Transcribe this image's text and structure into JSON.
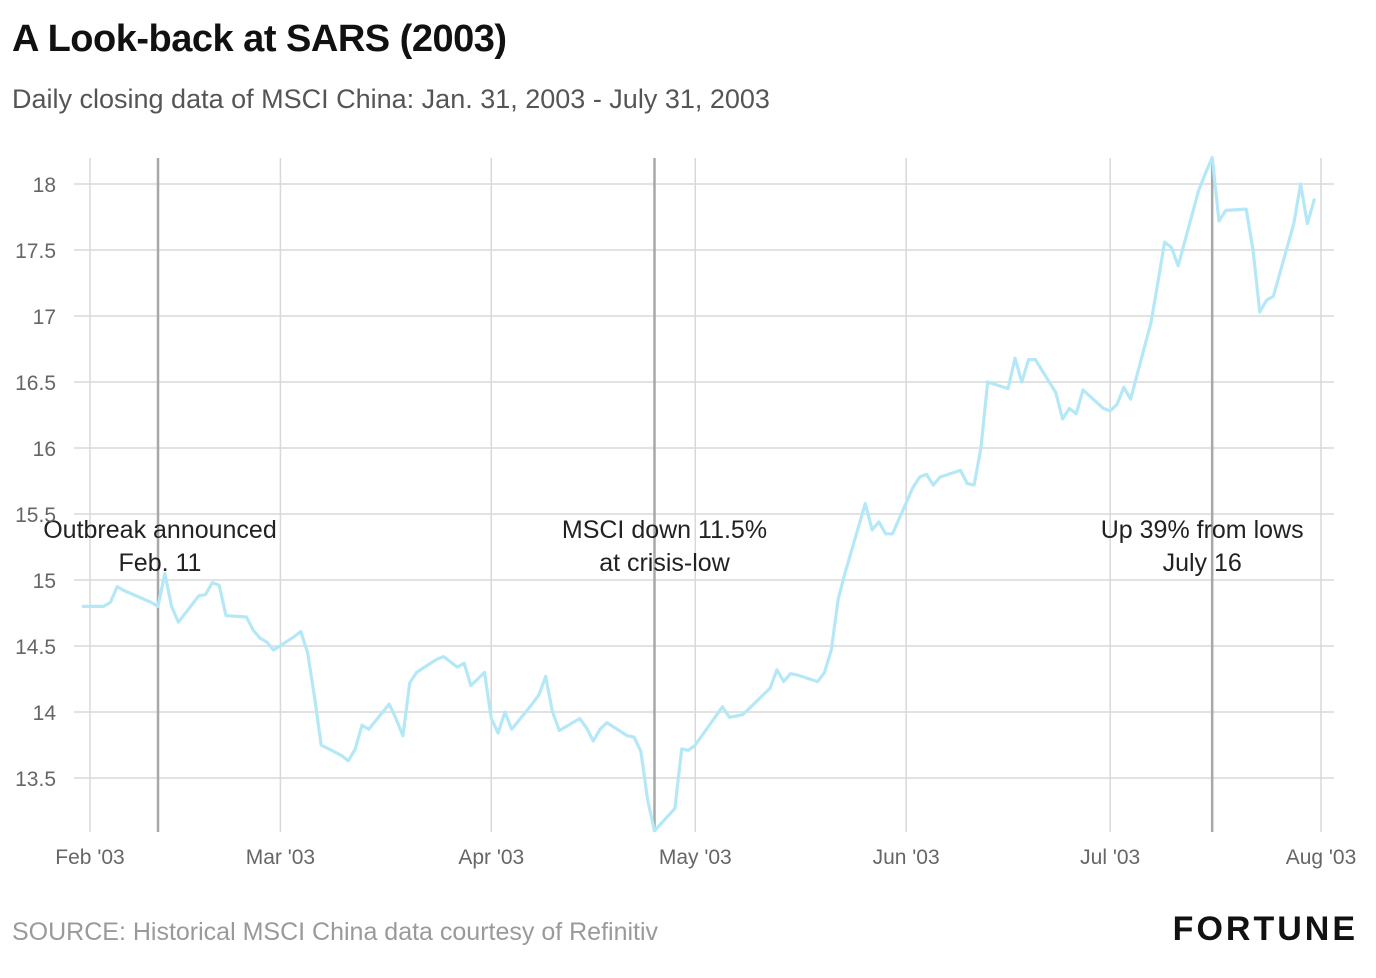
{
  "title": "A Look-back at SARS (2003)",
  "subtitle": "Daily closing data of MSCI China: Jan. 31, 2003 - July 31, 2003",
  "source": "SOURCE: Historical MSCI China data courtesy of Refinitiv",
  "brand": "FORTUNE",
  "colors": {
    "line": "#b5e8f7",
    "grid": "#d8d8d8",
    "marker": "#a8a8a8"
  },
  "chart_data": {
    "type": "line",
    "xlabel": "",
    "ylabel": "",
    "xlim": [
      "2003-01-31",
      "2003-07-31"
    ],
    "ylim": [
      13.1,
      18.2
    ],
    "grid": true,
    "x_ticks": [
      {
        "date": "2003-02-01",
        "label": "Feb '03"
      },
      {
        "date": "2003-03-01",
        "label": "Mar '03"
      },
      {
        "date": "2003-04-01",
        "label": "Apr '03"
      },
      {
        "date": "2003-05-01",
        "label": "May '03"
      },
      {
        "date": "2003-06-01",
        "label": "Jun '03"
      },
      {
        "date": "2003-07-01",
        "label": "Jul '03"
      },
      {
        "date": "2003-08-01",
        "label": "Aug '03"
      }
    ],
    "y_ticks": [
      {
        "value": 13.5,
        "label": "13.5"
      },
      {
        "value": 14,
        "label": "14"
      },
      {
        "value": 14.5,
        "label": "14.5"
      },
      {
        "value": 15,
        "label": "15"
      },
      {
        "value": 15.5,
        "label": "15.5"
      },
      {
        "value": 16,
        "label": "16"
      },
      {
        "value": 16.5,
        "label": "16.5"
      },
      {
        "value": 17,
        "label": "17"
      },
      {
        "value": 17.5,
        "label": "17.5"
      },
      {
        "value": 18,
        "label": "18"
      }
    ],
    "series": [
      {
        "name": "",
        "points": [
          [
            "2003-01-31",
            14.8
          ],
          [
            "2003-02-03",
            14.8
          ],
          [
            "2003-02-04",
            14.83
          ],
          [
            "2003-02-05",
            14.95
          ],
          [
            "2003-02-06",
            14.92
          ],
          [
            "2003-02-10",
            14.83
          ],
          [
            "2003-02-11",
            14.8
          ],
          [
            "2003-02-12",
            15.05
          ],
          [
            "2003-02-13",
            14.8
          ],
          [
            "2003-02-14",
            14.68
          ],
          [
            "2003-02-17",
            14.88
          ],
          [
            "2003-02-18",
            14.89
          ],
          [
            "2003-02-19",
            14.98
          ],
          [
            "2003-02-20",
            14.96
          ],
          [
            "2003-02-21",
            14.73
          ],
          [
            "2003-02-24",
            14.72
          ],
          [
            "2003-02-25",
            14.62
          ],
          [
            "2003-02-26",
            14.56
          ],
          [
            "2003-02-27",
            14.53
          ],
          [
            "2003-02-28",
            14.47
          ],
          [
            "2003-03-03",
            14.57
          ],
          [
            "2003-03-04",
            14.61
          ],
          [
            "2003-03-05",
            14.45
          ],
          [
            "2003-03-06",
            14.12
          ],
          [
            "2003-03-07",
            13.75
          ],
          [
            "2003-03-10",
            13.67
          ],
          [
            "2003-03-11",
            13.63
          ],
          [
            "2003-03-12",
            13.72
          ],
          [
            "2003-03-13",
            13.9
          ],
          [
            "2003-03-14",
            13.87
          ],
          [
            "2003-03-17",
            14.06
          ],
          [
            "2003-03-18",
            13.95
          ],
          [
            "2003-03-19",
            13.82
          ],
          [
            "2003-03-20",
            14.22
          ],
          [
            "2003-03-21",
            14.3
          ],
          [
            "2003-03-24",
            14.4
          ],
          [
            "2003-03-25",
            14.42
          ],
          [
            "2003-03-26",
            14.38
          ],
          [
            "2003-03-27",
            14.34
          ],
          [
            "2003-03-28",
            14.37
          ],
          [
            "2003-03-29",
            14.2
          ],
          [
            "2003-03-31",
            14.3
          ],
          [
            "2003-04-01",
            13.95
          ],
          [
            "2003-04-02",
            13.84
          ],
          [
            "2003-04-03",
            14.0
          ],
          [
            "2003-04-04",
            13.87
          ],
          [
            "2003-04-07",
            14.06
          ],
          [
            "2003-04-08",
            14.13
          ],
          [
            "2003-04-09",
            14.27
          ],
          [
            "2003-04-10",
            14.0
          ],
          [
            "2003-04-11",
            13.86
          ],
          [
            "2003-04-14",
            13.95
          ],
          [
            "2003-04-15",
            13.88
          ],
          [
            "2003-04-16",
            13.78
          ],
          [
            "2003-04-17",
            13.87
          ],
          [
            "2003-04-18",
            13.92
          ],
          [
            "2003-04-21",
            13.82
          ],
          [
            "2003-04-22",
            13.81
          ],
          [
            "2003-04-23",
            13.7
          ],
          [
            "2003-04-24",
            13.33
          ],
          [
            "2003-04-25",
            13.1
          ],
          [
            "2003-04-28",
            13.27
          ],
          [
            "2003-04-29",
            13.72
          ],
          [
            "2003-04-30",
            13.71
          ],
          [
            "2003-05-01",
            13.75
          ],
          [
            "2003-05-05",
            14.04
          ],
          [
            "2003-05-06",
            13.96
          ],
          [
            "2003-05-07",
            13.97
          ],
          [
            "2003-05-08",
            13.98
          ],
          [
            "2003-05-12",
            14.18
          ],
          [
            "2003-05-13",
            14.32
          ],
          [
            "2003-05-14",
            14.23
          ],
          [
            "2003-05-15",
            14.29
          ],
          [
            "2003-05-16",
            14.28
          ],
          [
            "2003-05-19",
            14.23
          ],
          [
            "2003-05-20",
            14.3
          ],
          [
            "2003-05-21",
            14.47
          ],
          [
            "2003-05-22",
            14.85
          ],
          [
            "2003-05-23",
            15.05
          ],
          [
            "2003-05-26",
            15.58
          ],
          [
            "2003-05-27",
            15.38
          ],
          [
            "2003-05-28",
            15.44
          ],
          [
            "2003-05-29",
            15.35
          ],
          [
            "2003-05-30",
            15.35
          ],
          [
            "2003-06-02",
            15.7
          ],
          [
            "2003-06-03",
            15.78
          ],
          [
            "2003-06-04",
            15.8
          ],
          [
            "2003-06-05",
            15.72
          ],
          [
            "2003-06-06",
            15.78
          ],
          [
            "2003-06-09",
            15.83
          ],
          [
            "2003-06-10",
            15.73
          ],
          [
            "2003-06-11",
            15.72
          ],
          [
            "2003-06-12",
            16.0
          ],
          [
            "2003-06-13",
            16.5
          ],
          [
            "2003-06-16",
            16.45
          ],
          [
            "2003-06-17",
            16.68
          ],
          [
            "2003-06-18",
            16.5
          ],
          [
            "2003-06-19",
            16.67
          ],
          [
            "2003-06-20",
            16.67
          ],
          [
            "2003-06-23",
            16.42
          ],
          [
            "2003-06-24",
            16.22
          ],
          [
            "2003-06-25",
            16.3
          ],
          [
            "2003-06-26",
            16.26
          ],
          [
            "2003-06-27",
            16.44
          ],
          [
            "2003-06-30",
            16.3
          ],
          [
            "2003-07-01",
            16.28
          ],
          [
            "2003-07-02",
            16.33
          ],
          [
            "2003-07-03",
            16.46
          ],
          [
            "2003-07-04",
            16.37
          ],
          [
            "2003-07-07",
            16.95
          ],
          [
            "2003-07-08",
            17.25
          ],
          [
            "2003-07-09",
            17.56
          ],
          [
            "2003-07-10",
            17.52
          ],
          [
            "2003-07-11",
            17.38
          ],
          [
            "2003-07-14",
            17.95
          ],
          [
            "2003-07-15",
            18.08
          ],
          [
            "2003-07-16",
            18.2
          ],
          [
            "2003-07-17",
            17.72
          ],
          [
            "2003-07-18",
            17.8
          ],
          [
            "2003-07-21",
            17.81
          ],
          [
            "2003-07-22",
            17.5
          ],
          [
            "2003-07-23",
            17.03
          ],
          [
            "2003-07-24",
            17.12
          ],
          [
            "2003-07-25",
            17.15
          ],
          [
            "2003-07-28",
            17.7
          ],
          [
            "2003-07-29",
            18.0
          ],
          [
            "2003-07-30",
            17.7
          ],
          [
            "2003-07-31",
            17.88
          ]
        ]
      }
    ],
    "annotations": [
      {
        "date": "2003-02-11",
        "lines": [
          "Outbreak announced",
          "Feb. 11"
        ]
      },
      {
        "date": "2003-04-25",
        "lines": [
          "MSCI down 11.5%",
          "at crisis-low"
        ]
      },
      {
        "date": "2003-07-16",
        "lines": [
          "Up 39% from lows",
          "July 16"
        ]
      }
    ]
  }
}
